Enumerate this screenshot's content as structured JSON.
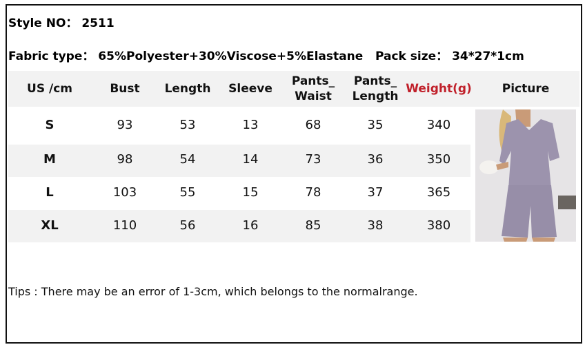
{
  "style_line": {
    "label": "Style NO：",
    "value": "2511"
  },
  "fabric_line": {
    "label": "Fabric type：",
    "value": "65%Polyester+30%Viscose+5%Elastane",
    "pack_label": "Pack size：",
    "pack_value": "34*27*1cm"
  },
  "table": {
    "headers": [
      "US /cm",
      "Bust",
      "Length",
      "Sleeve",
      "Pants_\nWaist",
      "Pants_\nLength",
      "Weight(g)",
      "Picture"
    ],
    "header_colors": {
      "weight": "#c0202a"
    },
    "rows": [
      [
        "S",
        "93",
        "53",
        "13",
        "68",
        "35",
        "340"
      ],
      [
        "M",
        "98",
        "54",
        "14",
        "73",
        "36",
        "350"
      ],
      [
        "L",
        "103",
        "55",
        "15",
        "78",
        "37",
        "365"
      ],
      [
        "XL",
        "110",
        "56",
        "16",
        "85",
        "38",
        "380"
      ]
    ]
  },
  "picture": {
    "icon": "product-photo-lavender-ribbed-tshirt-shorts-set"
  },
  "tips": "Tips : There may be an error of 1-3cm, which belongs to the normalrange."
}
